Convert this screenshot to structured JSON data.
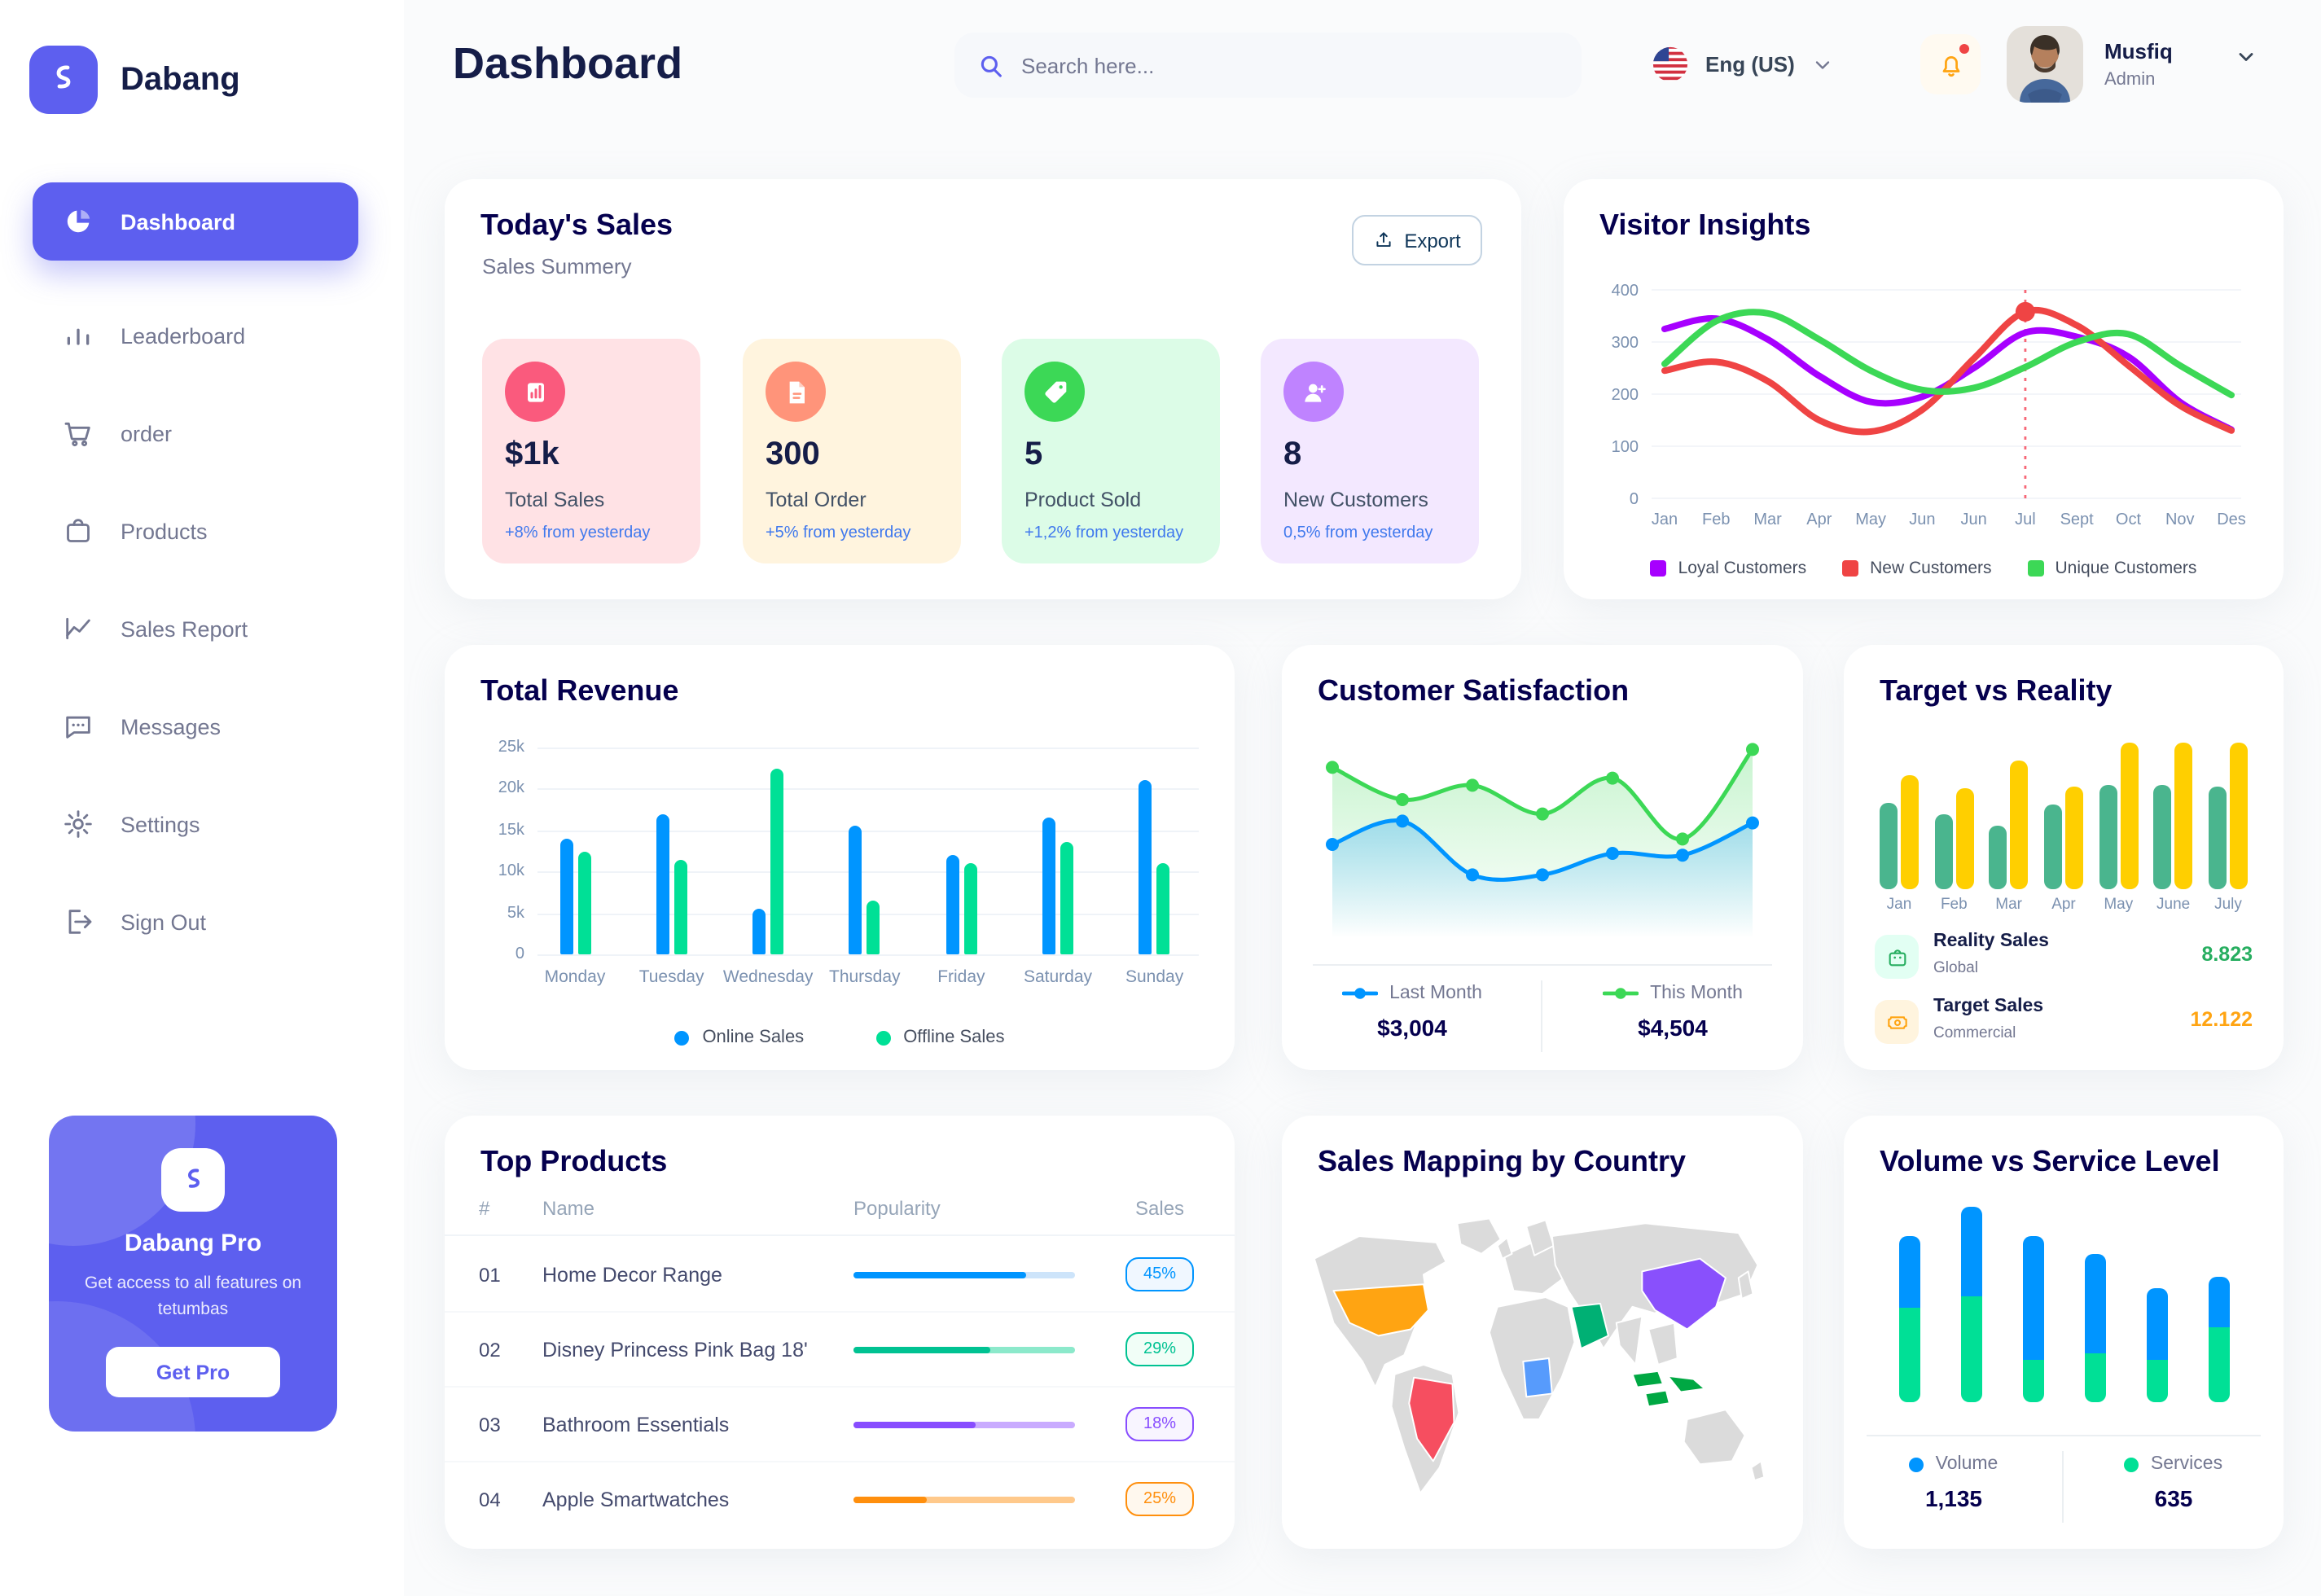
{
  "brand": {
    "name": "Dabang"
  },
  "header": {
    "title": "Dashboard",
    "search_placeholder": "Search here...",
    "language": "Eng (US)",
    "user_name": "Musfiq",
    "user_role": "Admin"
  },
  "sidebar": {
    "items": [
      {
        "id": "dashboard",
        "label": "Dashboard",
        "icon": "pie",
        "active": true
      },
      {
        "id": "leaderboard",
        "label": "Leaderboard",
        "icon": "bars",
        "active": false
      },
      {
        "id": "order",
        "label": "order",
        "icon": "cart",
        "active": false
      },
      {
        "id": "products",
        "label": "Products",
        "icon": "bag",
        "active": false
      },
      {
        "id": "sales-report",
        "label": "Sales Report",
        "icon": "chart",
        "active": false
      },
      {
        "id": "messages",
        "label": "Messages",
        "icon": "chat",
        "active": false
      },
      {
        "id": "settings",
        "label": "Settings",
        "icon": "gear",
        "active": false
      },
      {
        "id": "sign-out",
        "label": "Sign Out",
        "icon": "exit",
        "active": false
      }
    ],
    "pro": {
      "title": "Dabang Pro",
      "description": "Get access to all features on tetumbas",
      "cta": "Get Pro"
    }
  },
  "today_sales": {
    "title": "Today's Sales",
    "subtitle": "Sales Summery",
    "export_label": "Export",
    "stats": [
      {
        "value": "$1k",
        "label": "Total Sales",
        "delta": "+8% from yesterday",
        "bg": "#FFE2E5",
        "accent": "#FA5A7D",
        "icon": "sales"
      },
      {
        "value": "300",
        "label": "Total Order",
        "delta": "+5% from yesterday",
        "bg": "#FFF4DE",
        "accent": "#FF947A",
        "icon": "order"
      },
      {
        "value": "5",
        "label": "Product Sold",
        "delta": "+1,2% from yesterday",
        "bg": "#DCFCE7",
        "accent": "#3CD856",
        "icon": "tag"
      },
      {
        "value": "8",
        "label": "New Customers",
        "delta": "0,5% from yesterday",
        "bg": "#F3E8FF",
        "accent": "#BF83FF",
        "icon": "user"
      }
    ]
  },
  "visitor_insights": {
    "title": "Visitor Insights",
    "chart": {
      "type": "line",
      "x": [
        "Jan",
        "Feb",
        "Mar",
        "Apr",
        "May",
        "Jun",
        "Jun",
        "Jul",
        "Sept",
        "Oct",
        "Nov",
        "Des"
      ],
      "ylim": [
        0,
        400
      ],
      "yticks": [
        0,
        100,
        200,
        300,
        400
      ],
      "series": [
        {
          "name": "Loyal Customers",
          "color": "#A700FF",
          "values": [
            325,
            345,
            305,
            235,
            185,
            195,
            250,
            318,
            310,
            272,
            185,
            132
          ]
        },
        {
          "name": "New Customers",
          "color": "#EF4444",
          "values": [
            245,
            262,
            225,
            150,
            128,
            170,
            268,
            358,
            332,
            255,
            178,
            130
          ]
        },
        {
          "name": "Unique Customers",
          "color": "#3CD856",
          "values": [
            258,
            340,
            355,
            305,
            245,
            208,
            212,
            252,
            300,
            315,
            255,
            198
          ]
        }
      ],
      "marker": {
        "series_index": 1,
        "point_index": 7
      }
    }
  },
  "total_revenue": {
    "title": "Total Revenue",
    "chart": {
      "type": "bar",
      "categories": [
        "Monday",
        "Tuesday",
        "Wednesday",
        "Thursday",
        "Friday",
        "Saturday",
        "Sunday"
      ],
      "ymax": 25,
      "ytick_labels": [
        "0",
        "5k",
        "10k",
        "15k",
        "20k",
        "25k"
      ],
      "series": [
        {
          "name": "Online Sales",
          "color": "#0095FF",
          "values": [
            14,
            17,
            5.5,
            15.5,
            12,
            16.5,
            21
          ]
        },
        {
          "name": "Offline Sales",
          "color": "#00E096",
          "values": [
            12.5,
            11.5,
            22.5,
            6.5,
            11,
            13.5,
            11
          ]
        }
      ]
    }
  },
  "customer_satisfaction": {
    "title": "Customer Satisfaction",
    "chart": {
      "type": "area",
      "series": [
        {
          "name": "Last Month",
          "color": "#0095FF",
          "total": "$3,004",
          "values": [
            45,
            58,
            28,
            28,
            40,
            39,
            57
          ]
        },
        {
          "name": "This Month",
          "color": "#3CD856",
          "total": "$4,504",
          "values": [
            88,
            70,
            78,
            62,
            82,
            48,
            98
          ]
        }
      ]
    }
  },
  "target_vs_reality": {
    "title": "Target vs Reality",
    "chart": {
      "type": "bar",
      "categories": [
        "Jan",
        "Feb",
        "Mar",
        "Apr",
        "May",
        "June",
        "July"
      ],
      "series": [
        {
          "name": "Reality Sales",
          "color": "#4AB58E",
          "values": [
            58,
            50,
            42,
            57,
            70,
            70,
            69
          ]
        },
        {
          "name": "Target Sales",
          "color": "#FFCF00",
          "values": [
            76,
            67,
            86,
            68,
            98,
            98,
            98
          ]
        }
      ]
    },
    "legend": [
      {
        "title": "Reality Sales",
        "subtitle": "Global",
        "value": "8.823",
        "value_color": "#27AE60",
        "icon": "legbag",
        "icon_bg": "#E2FFF3"
      },
      {
        "title": "Target Sales",
        "subtitle": "Commercial",
        "value": "12.122",
        "value_color": "#FFA412",
        "icon": "ticket",
        "icon_bg": "#FFF4DE"
      }
    ]
  },
  "top_products": {
    "title": "Top Products",
    "columns": [
      "#",
      "Name",
      "Popularity",
      "Sales"
    ],
    "rows": [
      {
        "num": "01",
        "name": "Home Decor Range",
        "popularity": 78,
        "sales": "45%",
        "color": "#0095FF",
        "track": "#CDE4FA",
        "badge_bg": "#F0F7FF"
      },
      {
        "num": "02",
        "name": "Disney Princess Pink Bag 18'",
        "popularity": 62,
        "sales": "29%",
        "color": "#00C292",
        "track": "#8CE9CB",
        "badge_bg": "#F1FEF7"
      },
      {
        "num": "03",
        "name": "Bathroom Essentials",
        "popularity": 55,
        "sales": "18%",
        "color": "#884DFF",
        "track": "#C9ABFF",
        "badge_bg": "#F8F5FF"
      },
      {
        "num": "04",
        "name": "Apple Smartwatches",
        "popularity": 33,
        "sales": "25%",
        "color": "#FF8F0D",
        "track": "#FFC98B",
        "badge_bg": "#FFF8EE"
      }
    ]
  },
  "sales_mapping": {
    "title": "Sales Mapping by Country",
    "land_color": "#DBDBDB",
    "countries": [
      {
        "id": "usa",
        "color": "#FFA412"
      },
      {
        "id": "brazil",
        "color": "#F64E60"
      },
      {
        "id": "china",
        "color": "#8950FC"
      },
      {
        "id": "saudi-arabia",
        "color": "#00B074"
      },
      {
        "id": "dr-congo",
        "color": "#579BFC"
      },
      {
        "id": "indonesia",
        "color": "#00A843"
      }
    ]
  },
  "volume_service": {
    "title": "Volume vs Service Level",
    "chart": {
      "type": "stacked-bar",
      "series": [
        {
          "name": "Volume",
          "color": "#0095FF",
          "total": "1,135",
          "values": [
            37,
            46,
            63,
            51,
            36,
            26
          ]
        },
        {
          "name": "Services",
          "color": "#00E096",
          "total": "635",
          "values": [
            48,
            54,
            22,
            25,
            22,
            38
          ]
        }
      ]
    }
  }
}
